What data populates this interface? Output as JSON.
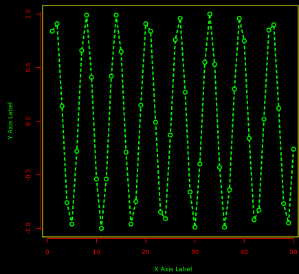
{
  "chart_data": {
    "type": "line",
    "xlabel": "X Axis Label",
    "ylabel": "Y Axis Label",
    "xlim": [
      -0.94,
      50.98
    ],
    "ylim": [
      -1.08,
      1.08
    ],
    "x_ticks": [
      0,
      10,
      20,
      30,
      40,
      50
    ],
    "y_ticks": [
      -1.0,
      -0.5,
      0.0,
      0.5,
      1.0
    ],
    "grid": false,
    "line_style": "dashed",
    "marker": "open-circle",
    "series": [
      {
        "x": [
          1,
          2,
          3,
          4,
          5,
          6,
          7,
          8,
          9,
          10,
          11,
          12,
          13,
          14,
          15,
          16,
          17,
          18,
          19,
          20,
          21,
          22,
          23,
          24,
          25,
          26,
          27,
          28,
          29,
          30,
          31,
          32,
          33,
          34,
          35,
          36,
          37,
          38,
          39,
          40,
          41,
          42,
          43,
          44,
          45,
          46,
          47,
          48,
          49,
          50
        ],
        "values": [
          0.84,
          0.91,
          0.14,
          -0.76,
          -0.96,
          -0.28,
          0.66,
          0.99,
          0.41,
          -0.54,
          -1.0,
          -0.54,
          0.42,
          0.99,
          0.65,
          -0.29,
          -0.96,
          -0.75,
          0.15,
          0.91,
          0.84,
          -0.01,
          -0.85,
          -0.91,
          -0.13,
          0.76,
          0.96,
          0.27,
          -0.66,
          -0.99,
          -0.4,
          0.55,
          1.0,
          0.53,
          -0.43,
          -0.99,
          -0.64,
          0.3,
          0.96,
          0.75,
          -0.16,
          -0.92,
          -0.83,
          0.02,
          0.85,
          0.9,
          0.12,
          -0.77,
          -0.95,
          -0.26
        ]
      }
    ],
    "colors": {
      "background": "#000000",
      "frame": "#ffff00",
      "axis_line": "#ff0000",
      "tick_labels": "#ff0000",
      "axis_titles": "#00ff00",
      "series": "#00ff00"
    }
  }
}
